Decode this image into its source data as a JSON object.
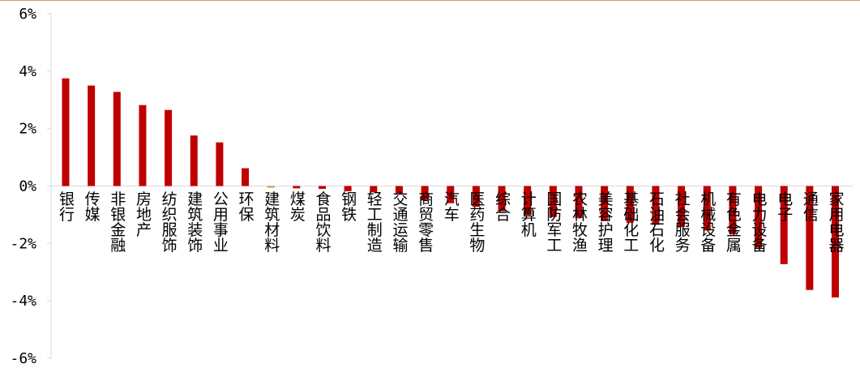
{
  "chart_data": {
    "type": "bar",
    "title": "",
    "xlabel": "",
    "ylabel": "",
    "ylim": [
      -6,
      6
    ],
    "yticks": [
      "6%",
      "4%",
      "2%",
      "0%",
      "-2%",
      "-4%",
      "-6%"
    ],
    "grid": false,
    "legend": "none",
    "categories": [
      "银行",
      "传媒",
      "非银金融",
      "房地产",
      "纺织服饰",
      "建筑装饰",
      "公用事业",
      "环保",
      "建筑材料",
      "煤炭",
      "食品饮料",
      "钢铁",
      "轻工制造",
      "交通运输",
      "商贸零售",
      "汽车",
      "医药生物",
      "综合",
      "计算机",
      "国防军工",
      "农林牧渔",
      "美容护理",
      "基础化工",
      "石油石化",
      "社会服务",
      "机械设备",
      "有色金属",
      "电力设备",
      "电子",
      "通信",
      "家用电器"
    ],
    "values": [
      3.75,
      3.5,
      3.28,
      2.82,
      2.65,
      1.76,
      1.52,
      0.62,
      -0.06,
      -0.08,
      -0.1,
      -0.18,
      -0.22,
      -0.27,
      -0.5,
      -0.6,
      -0.72,
      -0.88,
      -1.02,
      -1.08,
      -1.12,
      -1.22,
      -1.28,
      -1.35,
      -1.42,
      -1.55,
      -1.68,
      -2.15,
      -2.72,
      -3.62,
      -3.88
    ],
    "colors": {
      "bar": "#c00000",
      "highlight_bar": "#d4a04a",
      "axis": "#d9d9d9",
      "text": "#000000"
    },
    "highlight_index": 8
  }
}
